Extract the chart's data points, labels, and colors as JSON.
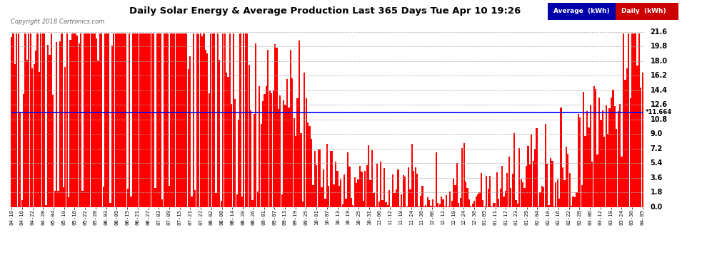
{
  "title": "Daily Solar Energy & Average Production Last 365 Days Tue Apr 10 19:26",
  "copyright": "Copyright 2018 Cartronics.com",
  "average_value": 11.664,
  "average_label": "11.664",
  "bar_color": "#ff0000",
  "average_line_color": "#0000ff",
  "background_color": "#ffffff",
  "plot_bg_color": "#ffffff",
  "grid_color": "#aaaaaa",
  "ylim": [
    0.0,
    21.6
  ],
  "yticks": [
    0.0,
    1.8,
    3.6,
    5.4,
    7.2,
    9.0,
    10.8,
    12.6,
    14.4,
    16.2,
    18.0,
    19.8,
    21.6
  ],
  "legend_avg_bg": "#000099",
  "legend_daily_bg": "#cc0000",
  "num_bars": 365,
  "x_labels": [
    "04-10",
    "04-16",
    "04-22",
    "04-28",
    "05-04",
    "05-10",
    "05-16",
    "05-22",
    "05-28",
    "06-03",
    "06-09",
    "06-15",
    "06-21",
    "06-27",
    "07-03",
    "07-09",
    "07-15",
    "07-21",
    "07-27",
    "08-02",
    "08-08",
    "08-14",
    "08-20",
    "08-26",
    "09-01",
    "09-07",
    "09-13",
    "09-19",
    "09-25",
    "10-01",
    "10-07",
    "10-13",
    "10-19",
    "10-25",
    "10-31",
    "11-06",
    "11-12",
    "11-18",
    "11-24",
    "11-30",
    "12-06",
    "12-12",
    "12-18",
    "12-24",
    "12-30",
    "01-05",
    "01-11",
    "01-17",
    "01-23",
    "01-29",
    "02-04",
    "02-10",
    "02-16",
    "02-22",
    "02-28",
    "03-06",
    "03-12",
    "03-18",
    "03-24",
    "03-30",
    "04-05"
  ]
}
